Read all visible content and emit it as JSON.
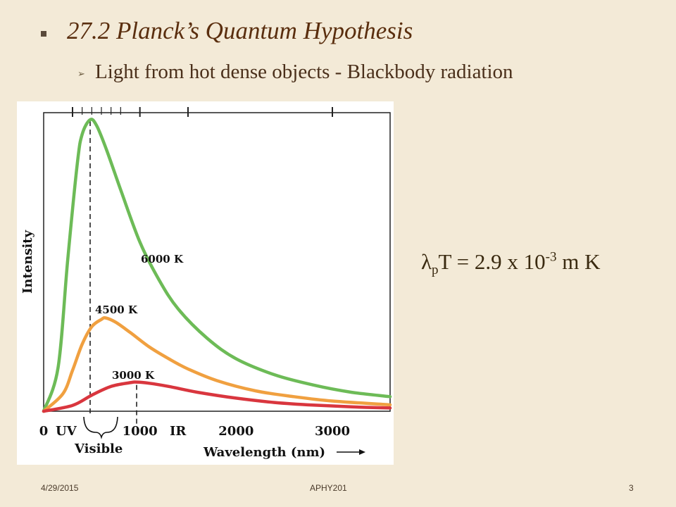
{
  "slide": {
    "title": "27.2  Planck’s Quantum Hypothesis",
    "subtitle": "Light from hot dense objects - Blackbody radiation",
    "formula": {
      "lambda": "λ",
      "sub": "p",
      "mid": "T = 2.9 x 10",
      "sup": "-3",
      "end": " m K"
    },
    "footer": {
      "date": "4/29/2015",
      "center": "APHY201",
      "page": "3"
    }
  },
  "chart_data": {
    "type": "line",
    "ylabel": "Intensity",
    "xlabel": "Wavelength (nm)",
    "xlim": [
      0,
      3600
    ],
    "ylim": [
      0,
      100
    ],
    "x_ticks": [
      "0",
      "1000",
      "2000",
      "3000"
    ],
    "region_labels": {
      "uv": "UV",
      "visible": "Visible",
      "ir": "IR"
    },
    "peak_markers_nm": [
      483,
      966
    ],
    "series": [
      {
        "name": "6000 K",
        "temperature_K": 6000,
        "color": "#6dbb57",
        "x": [
          0,
          150,
          250,
          350,
          400,
          483,
          550,
          650,
          800,
          1000,
          1200,
          1400,
          1700,
          2000,
          2400,
          2800,
          3200,
          3600
        ],
        "values": [
          0,
          15,
          52,
          85,
          95,
          100,
          98,
          90,
          76,
          58,
          45,
          35,
          25,
          18,
          12.5,
          9,
          6.5,
          5
        ]
      },
      {
        "name": "4500 K",
        "temperature_K": 4500,
        "color": "#f0a040",
        "x": [
          0,
          200,
          300,
          400,
          500,
          600,
          644,
          750,
          900,
          1100,
          1300,
          1500,
          1800,
          2200,
          2600,
          3000,
          3600
        ],
        "values": [
          0,
          6,
          14,
          23,
          29,
          31.5,
          32,
          30.5,
          27,
          22,
          18,
          14.5,
          10.5,
          7,
          5,
          3.5,
          2.2
        ]
      },
      {
        "name": "3000 K",
        "temperature_K": 3000,
        "color": "#d9363e",
        "x": [
          0,
          300,
          500,
          700,
          900,
          966,
          1100,
          1300,
          1600,
          2000,
          2400,
          2800,
          3200,
          3600
        ],
        "values": [
          0,
          2,
          5.5,
          8.5,
          9.8,
          10,
          9.6,
          8.5,
          6.5,
          4.5,
          3,
          2.1,
          1.5,
          1.1
        ]
      }
    ]
  }
}
